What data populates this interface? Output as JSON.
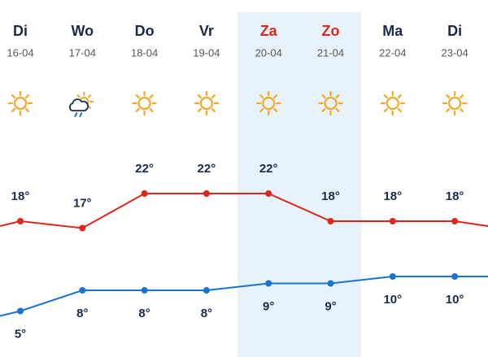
{
  "chart_data": {
    "type": "line",
    "categories": [
      "Di",
      "Wo",
      "Do",
      "Vr",
      "Za",
      "Zo",
      "Ma",
      "Di"
    ],
    "dates": [
      "16-04",
      "17-04",
      "18-04",
      "19-04",
      "20-04",
      "21-04",
      "22-04",
      "23-04"
    ],
    "ylim": [
      0,
      50
    ],
    "series": [
      {
        "color": "#e0251b",
        "values": [
          18,
          17,
          22,
          22,
          22,
          18,
          18,
          18
        ],
        "value_labels": [
          "18°",
          "17°",
          "22°",
          "22°",
          "22°",
          "18°",
          "18°",
          "18°"
        ]
      },
      {
        "color": "#1a73d0",
        "values": [
          5,
          8,
          8,
          8,
          9,
          9,
          10,
          10
        ],
        "value_labels": [
          "5°",
          "8°",
          "8°",
          "8°",
          "9°",
          "9°",
          "10°",
          "10°"
        ]
      }
    ]
  }
}
